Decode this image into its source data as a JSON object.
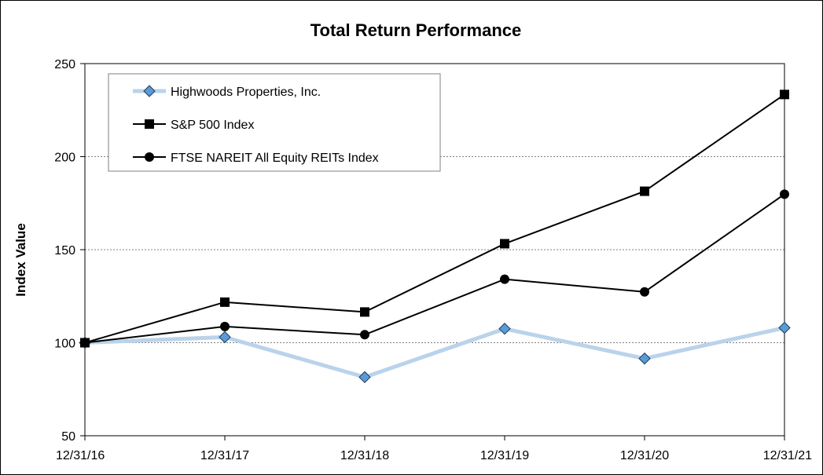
{
  "chart_data": {
    "type": "line",
    "title": "Total Return Performance",
    "xlabel": "",
    "ylabel": "Index Value",
    "categories": [
      "12/31/16",
      "12/31/17",
      "12/31/18",
      "12/31/19",
      "12/31/20",
      "12/31/21"
    ],
    "ylim": [
      50,
      250
    ],
    "yticks": [
      50,
      100,
      150,
      200,
      250
    ],
    "grid": "horizontal dashed",
    "legend_position": "top-left",
    "series": [
      {
        "name": "Highwoods Properties, Inc.",
        "values": [
          100,
          103,
          81.5,
          107.5,
          91.5,
          108
        ],
        "line_color": "#b9d3ea",
        "marker": "diamond",
        "marker_color": "#5b9bd5"
      },
      {
        "name": "S&P 500 Index",
        "values": [
          100,
          121.8,
          116.5,
          153.2,
          181.4,
          233.4
        ],
        "line_color": "#000000",
        "marker": "square",
        "marker_color": "#000000"
      },
      {
        "name": "FTSE NAREIT All Equity REITs Index",
        "values": [
          100,
          108.7,
          104.3,
          134.1,
          127.3,
          179.8
        ],
        "line_color": "#000000",
        "marker": "circle",
        "marker_color": "#000000"
      }
    ]
  }
}
